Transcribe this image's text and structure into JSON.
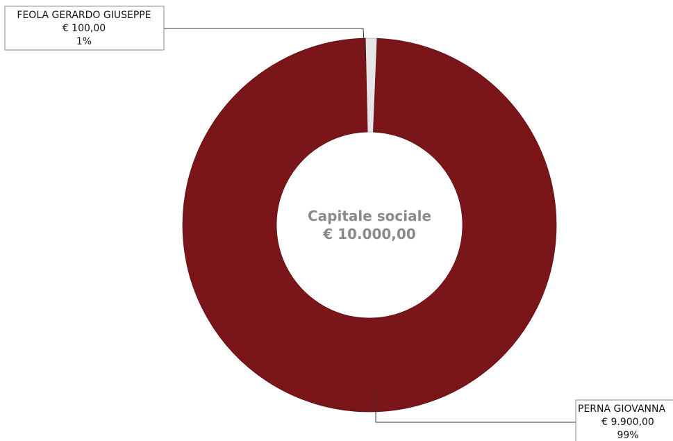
{
  "chart_data": {
    "type": "pie",
    "donut": true,
    "center_text": [
      "Capitale sociale",
      "€ 10.000,00"
    ],
    "slices": [
      {
        "name": "FEOLA GERARDO GIUSEPPE",
        "amount_label": "€ 100,00",
        "percent_label": "1%",
        "value": 100,
        "color": "#e6e6e6"
      },
      {
        "name": "PERNA GIOVANNA",
        "amount_label": "€ 9.900,00",
        "percent_label": "99%",
        "value": 9900,
        "color": "#7a1519"
      }
    ],
    "total": 10000,
    "legend": "none"
  }
}
